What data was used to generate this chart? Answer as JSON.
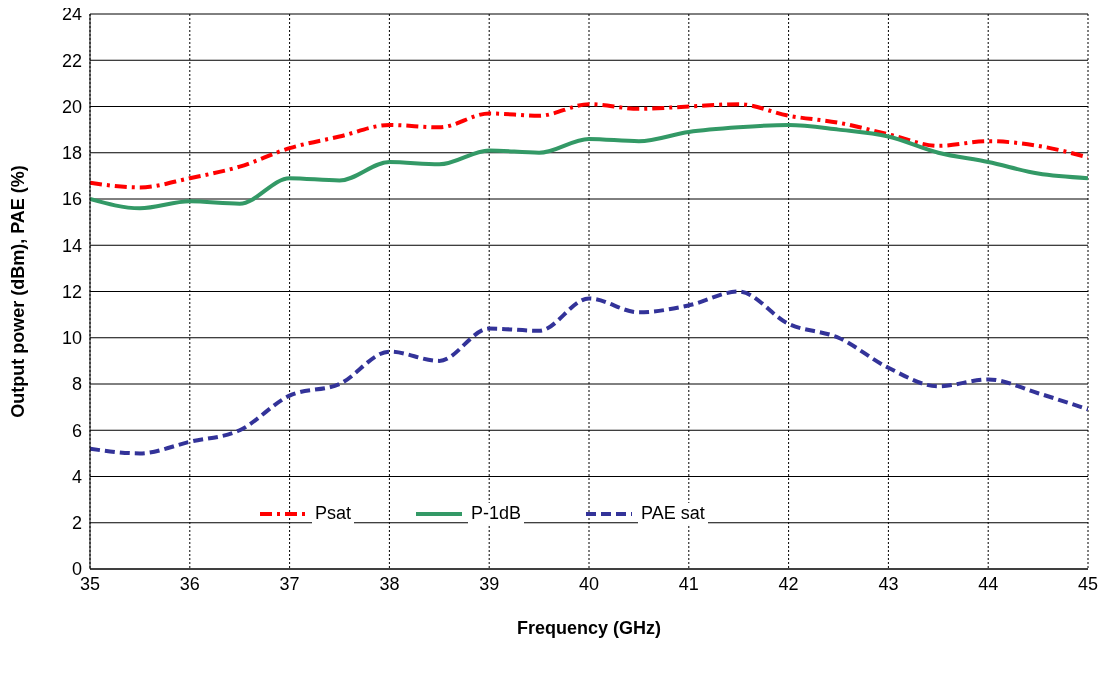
{
  "chart_data": {
    "type": "line",
    "xlabel": "Frequency (GHz)",
    "ylabel": "Output power  (dBm), PAE (%)",
    "x": [
      35,
      35.5,
      36,
      36.5,
      37,
      37.5,
      38,
      38.5,
      39,
      39.5,
      40,
      40.5,
      41,
      41.5,
      42,
      42.5,
      43,
      43.5,
      44,
      44.5,
      45
    ],
    "series": [
      {
        "name": "Psat",
        "color": "#ff0000",
        "line_style": "dashdot",
        "values": [
          16.7,
          16.5,
          16.9,
          17.4,
          18.2,
          18.7,
          19.2,
          19.1,
          19.7,
          19.6,
          20.1,
          19.9,
          20.0,
          20.1,
          19.6,
          19.3,
          18.8,
          18.3,
          18.5,
          18.3,
          17.8
        ]
      },
      {
        "name": "P-1dB",
        "color": "#339966",
        "line_style": "solid",
        "values": [
          16.0,
          15.6,
          15.9,
          15.8,
          16.9,
          16.8,
          17.6,
          17.5,
          18.1,
          18.0,
          18.6,
          18.5,
          18.9,
          19.1,
          19.2,
          19.0,
          18.7,
          18.0,
          17.6,
          17.1,
          16.9
        ]
      },
      {
        "name": "PAE sat",
        "color": "#333399",
        "line_style": "dashed",
        "values": [
          5.2,
          5.0,
          5.5,
          6.0,
          7.5,
          8.0,
          9.4,
          9.0,
          10.4,
          10.3,
          11.7,
          11.1,
          11.4,
          12.0,
          10.6,
          10.0,
          8.7,
          7.9,
          8.2,
          7.6,
          6.9
        ]
      }
    ],
    "xlim": [
      35,
      45
    ],
    "xticks": [
      35,
      36,
      37,
      38,
      39,
      40,
      41,
      42,
      43,
      44,
      45
    ],
    "ylim": [
      0,
      24
    ],
    "yticks": [
      0,
      2,
      4,
      6,
      8,
      10,
      12,
      14,
      16,
      18,
      20,
      22,
      24
    ],
    "grid": true,
    "legend": "bottom",
    "marker": "none"
  }
}
